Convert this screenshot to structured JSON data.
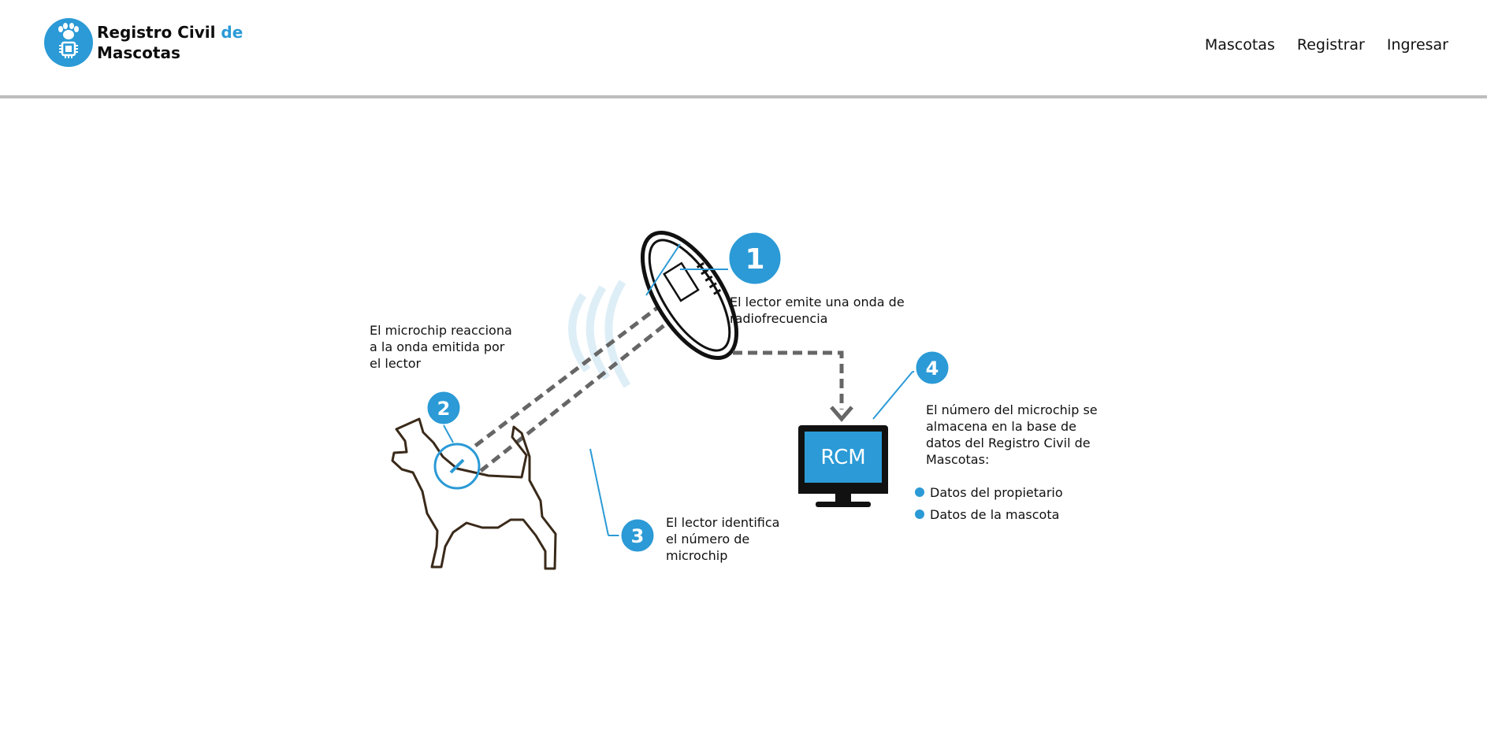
{
  "header": {
    "brand": {
      "line1": "Registro Civil",
      "accent": "de",
      "line2": "Mascotas"
    },
    "nav": [
      {
        "label": "Mascotas"
      },
      {
        "label": "Registrar"
      },
      {
        "label": "Ingresar"
      }
    ]
  },
  "diagram": {
    "step1": {
      "number": "1",
      "lines": [
        "El lector emite una onda de",
        "radiofrecuencia"
      ]
    },
    "step2": {
      "number": "2",
      "lines": [
        "El microchip reacciona",
        "a la onda emitida por",
        "el lector"
      ]
    },
    "step3": {
      "number": "3",
      "lines": [
        "El lector identifica",
        "el número de",
        "microchip"
      ]
    },
    "step4": {
      "number": "4",
      "lines": [
        "El número del microchip se",
        "almacena en la base de",
        "datos del Registro Civil de",
        "Mascotas:"
      ],
      "bullets": [
        "Datos del propietario",
        "Datos de la mascota"
      ]
    },
    "monitor_label": "RCM",
    "colors": {
      "accent": "#2b9ad6",
      "dash": "#666666",
      "outline": "#3a2a1a"
    }
  }
}
